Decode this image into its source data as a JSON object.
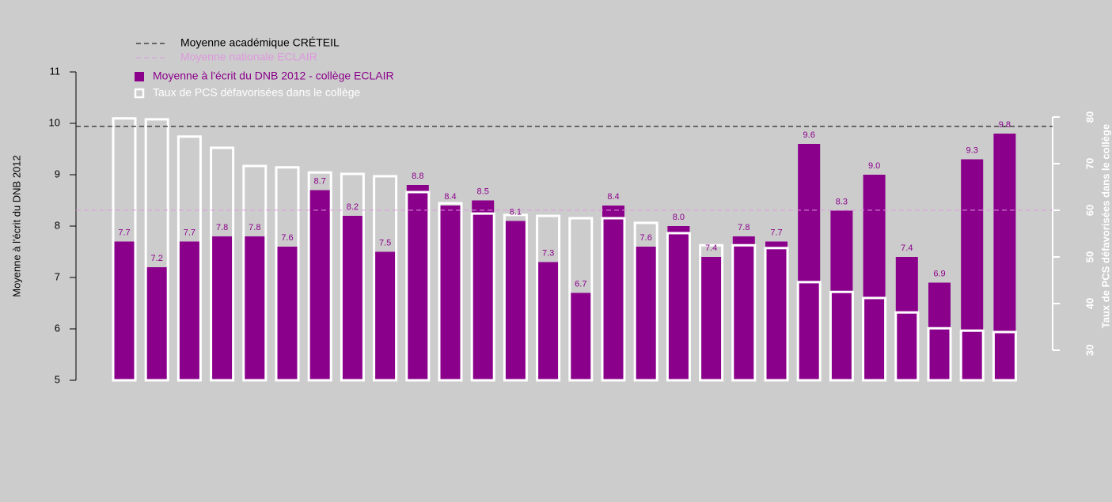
{
  "chart_data": {
    "type": "bar",
    "y_label": "Moyenne à l'écrit du DNB 2012",
    "y2_label": "Taux de PCS défavorisées dans le collège",
    "ylim": [
      5,
      11
    ],
    "yticks": [
      5,
      6,
      7,
      8,
      9,
      10,
      11
    ],
    "y2lim": [
      23.56,
      89.66
    ],
    "y2ticks": [
      30,
      40,
      50,
      60,
      70,
      80
    ],
    "reference_lines": [
      {
        "name": "Moyenne académique CRÉTEIL",
        "value": 9.94,
        "color": "#000000"
      },
      {
        "name": "Moyenne nationale ECLAIR",
        "value": 8.31,
        "color": "#dd99dd"
      }
    ],
    "series": [
      {
        "name": "Moyenne à l'écrit du DNB 2012 - collège ECLAIR",
        "color": "#8b008b",
        "values": [
          7.7,
          7.2,
          7.7,
          7.8,
          7.8,
          7.6,
          8.7,
          8.2,
          7.5,
          8.8,
          8.4,
          8.5,
          8.1,
          7.3,
          6.7,
          8.4,
          7.6,
          8.0,
          7.4,
          7.8,
          7.7,
          9.6,
          8.3,
          9.0,
          7.4,
          6.9,
          9.3,
          9.8
        ],
        "value_labels": [
          "7.7",
          "7.2",
          "7.7",
          "7.8",
          "7.8",
          "7.6",
          "8.7",
          "8.2",
          "7.5",
          "8.8",
          "8.4",
          "8.5",
          "8.1",
          "7.3",
          "6.7",
          "8.4",
          "7.6",
          "8.0",
          "7.4",
          "7.8",
          "7.7",
          "9.6",
          "8.3",
          "9.0",
          "7.4",
          "6.9",
          "9.3",
          "9.8"
        ]
      },
      {
        "name": "Taux de PCS défavorisées dans le collège",
        "color": "#ffffff",
        "axis": "y2",
        "values": [
          79.7,
          79.5,
          75.8,
          73.4,
          69.5,
          69.2,
          68.1,
          67.8,
          67.3,
          63.9,
          61.5,
          59.3,
          59.0,
          58.8,
          58.3,
          58.3,
          57.3,
          55.1,
          52.5,
          52.5,
          51.9,
          44.6,
          42.5,
          41.2,
          38.1,
          34.7,
          34.2,
          33.9
        ]
      }
    ]
  }
}
